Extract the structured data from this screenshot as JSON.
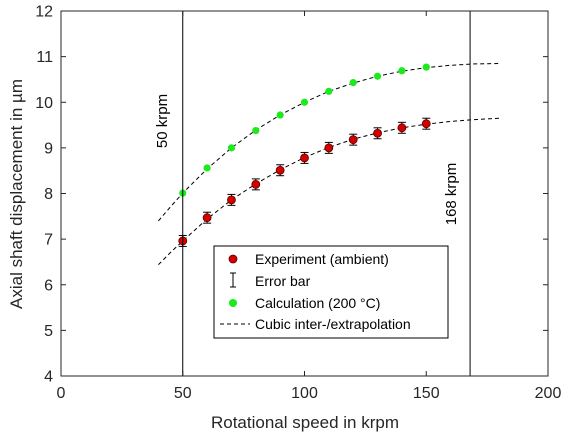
{
  "chart_data": {
    "type": "scatter",
    "xlabel": "Rotational speed in krpm",
    "ylabel": "Axial shaft displacement in µm",
    "xlim": [
      0,
      200
    ],
    "ylim": [
      4,
      12
    ],
    "xticks": [
      0,
      50,
      100,
      150,
      200
    ],
    "yticks": [
      4,
      5,
      6,
      7,
      8,
      9,
      10,
      11,
      12
    ],
    "grid": false,
    "legend_position": "bottom-center",
    "series": [
      {
        "name": "Experiment (ambient)",
        "kind": "scatter-errorbar",
        "color": "#d40000",
        "x": [
          50,
          60,
          70,
          80,
          90,
          100,
          110,
          120,
          130,
          140,
          150
        ],
        "y": [
          6.96,
          7.47,
          7.86,
          8.2,
          8.51,
          8.78,
          9.0,
          9.18,
          9.32,
          9.44,
          9.53
        ],
        "error": [
          0.12,
          0.12,
          0.12,
          0.12,
          0.12,
          0.12,
          0.12,
          0.12,
          0.12,
          0.12,
          0.12
        ]
      },
      {
        "name": "Calculation (200 °C)",
        "kind": "scatter",
        "color": "#1de91d",
        "x": [
          50,
          60,
          70,
          80,
          90,
          100,
          110,
          120,
          130,
          140,
          150
        ],
        "y": [
          8.01,
          8.56,
          9.0,
          9.38,
          9.72,
          10.0,
          10.24,
          10.43,
          10.57,
          10.69,
          10.77
        ]
      },
      {
        "name": "Cubic inter-/extrapolation",
        "kind": "dashed-line",
        "color": "#000000",
        "curves": [
          {
            "fit_of": "Experiment (ambient)",
            "x": [
              40,
              45,
              50,
              60,
              70,
              80,
              90,
              100,
              110,
              120,
              130,
              140,
              150,
              160,
              170,
              180
            ],
            "y": [
              6.44,
              6.71,
              6.96,
              7.44,
              7.86,
              8.21,
              8.52,
              8.79,
              9.01,
              9.19,
              9.33,
              9.44,
              9.52,
              9.58,
              9.62,
              9.65
            ]
          },
          {
            "fit_of": "Calculation (200 °C)",
            "x": [
              40,
              45,
              50,
              60,
              70,
              80,
              90,
              100,
              110,
              120,
              130,
              140,
              150,
              160,
              170,
              180
            ],
            "y": [
              7.4,
              7.71,
              8.01,
              8.54,
              9.0,
              9.39,
              9.72,
              10.0,
              10.24,
              10.42,
              10.57,
              10.68,
              10.76,
              10.81,
              10.84,
              10.85
            ]
          }
        ]
      }
    ],
    "error_bar_legend": "Error bar",
    "vertical_lines": [
      {
        "x": 50,
        "label": "50 krpm"
      },
      {
        "x": 168,
        "label": "168 krpm"
      }
    ],
    "legend": [
      {
        "label": "Experiment (ambient)",
        "marker": "red-dot"
      },
      {
        "label": "Error bar",
        "marker": "errorbar-icon"
      },
      {
        "label": "Calculation (200 °C)",
        "marker": "green-dot"
      },
      {
        "label": "Cubic inter-/extrapolation",
        "marker": "dashed-line-icon"
      }
    ]
  }
}
